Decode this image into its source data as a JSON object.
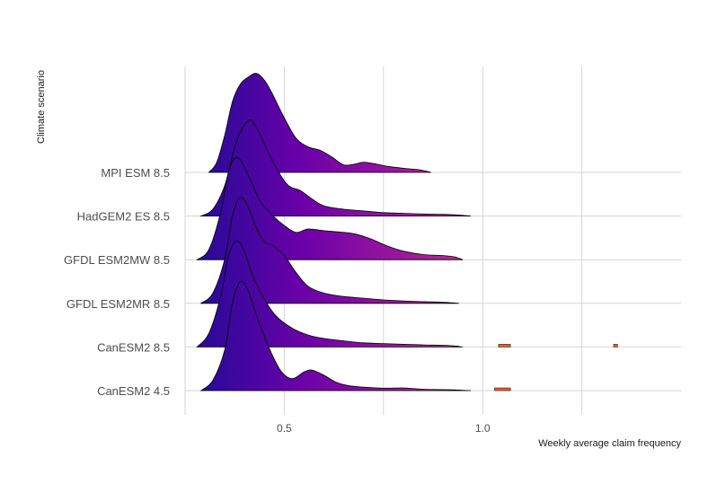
{
  "chart_data": {
    "type": "ridgeline",
    "xlabel": "Weekly average claim frequency",
    "ylabel": "Climate scenario",
    "xlim": [
      0.25,
      1.5
    ],
    "xticks": [
      0.5,
      1.0
    ],
    "xtick_labels": [
      "0.5",
      "1.0"
    ],
    "fill_gradient": [
      "#2b0a9a",
      "#6a00a8",
      "#b12a90",
      "#e16462",
      "#fca636"
    ],
    "series": [
      {
        "name": "CanESM2 4.5",
        "peak": 0.39,
        "x": [
          0.29,
          0.32,
          0.35,
          0.37,
          0.39,
          0.41,
          0.43,
          0.46,
          0.49,
          0.52,
          0.55,
          0.57,
          0.6,
          0.63,
          0.66,
          0.7,
          0.75,
          0.8,
          0.85,
          0.9,
          0.93,
          0.95,
          0.97
        ],
        "density": [
          0.0,
          0.3,
          1.2,
          2.6,
          3.2,
          2.9,
          2.2,
          1.3,
          0.6,
          0.35,
          0.55,
          0.6,
          0.45,
          0.25,
          0.15,
          0.1,
          0.07,
          0.08,
          0.04,
          0.03,
          0.02,
          0.01,
          0.0
        ]
      },
      {
        "name": "CanESM2 8.5",
        "peak": 0.38,
        "x": [
          0.28,
          0.31,
          0.34,
          0.36,
          0.38,
          0.4,
          0.42,
          0.45,
          0.48,
          0.52,
          0.56,
          0.6,
          0.65,
          0.7,
          0.75,
          0.8,
          0.85,
          0.9,
          0.93,
          0.95
        ],
        "density": [
          0.0,
          0.4,
          1.5,
          2.7,
          3.1,
          2.8,
          2.1,
          1.4,
          0.9,
          0.55,
          0.35,
          0.25,
          0.18,
          0.12,
          0.1,
          0.08,
          0.06,
          0.05,
          0.03,
          0.0
        ]
      },
      {
        "name": "GFDL ESM2MR 8.5",
        "peak": 0.39,
        "x": [
          0.29,
          0.32,
          0.35,
          0.37,
          0.39,
          0.41,
          0.43,
          0.45,
          0.47,
          0.5,
          0.53,
          0.56,
          0.6,
          0.65,
          0.7,
          0.75,
          0.8,
          0.85,
          0.9,
          0.94
        ],
        "density": [
          0.0,
          0.3,
          1.3,
          2.6,
          3.1,
          2.8,
          2.2,
          1.8,
          1.7,
          1.4,
          0.9,
          0.5,
          0.3,
          0.2,
          0.15,
          0.1,
          0.07,
          0.05,
          0.03,
          0.0
        ]
      },
      {
        "name": "GFDL ESM2MW 8.5",
        "peak": 0.38,
        "x": [
          0.28,
          0.31,
          0.34,
          0.36,
          0.38,
          0.4,
          0.42,
          0.44,
          0.47,
          0.5,
          0.53,
          0.56,
          0.6,
          0.65,
          0.68,
          0.72,
          0.76,
          0.8,
          0.85,
          0.9,
          0.93,
          0.95
        ],
        "density": [
          0.0,
          0.3,
          1.4,
          2.6,
          3.0,
          2.7,
          2.2,
          1.7,
          1.3,
          1.0,
          0.8,
          0.9,
          0.85,
          0.8,
          0.75,
          0.6,
          0.4,
          0.25,
          0.15,
          0.12,
          0.08,
          0.0
        ]
      },
      {
        "name": "HadGEM2 ES 8.5",
        "peak": 0.41,
        "x": [
          0.29,
          0.32,
          0.35,
          0.38,
          0.41,
          0.43,
          0.45,
          0.48,
          0.51,
          0.54,
          0.57,
          0.6,
          0.65,
          0.7,
          0.75,
          0.8,
          0.85,
          0.9,
          0.94,
          0.97
        ],
        "density": [
          0.0,
          0.2,
          0.9,
          2.2,
          2.8,
          2.6,
          2.1,
          1.4,
          0.9,
          0.75,
          0.5,
          0.3,
          0.2,
          0.15,
          0.1,
          0.08,
          0.06,
          0.05,
          0.03,
          0.0
        ]
      },
      {
        "name": "MPI ESM 8.5",
        "peak": 0.43,
        "x": [
          0.31,
          0.33,
          0.35,
          0.37,
          0.39,
          0.41,
          0.43,
          0.45,
          0.47,
          0.5,
          0.53,
          0.56,
          0.59,
          0.62,
          0.65,
          0.68,
          0.7,
          0.73,
          0.76,
          0.8,
          0.84,
          0.87
        ],
        "density": [
          0.0,
          0.3,
          1.1,
          2.1,
          2.6,
          2.8,
          2.9,
          2.7,
          2.3,
          1.6,
          1.0,
          0.75,
          0.65,
          0.45,
          0.22,
          0.25,
          0.3,
          0.25,
          0.18,
          0.12,
          0.08,
          0.0
        ]
      }
    ],
    "outliers": [
      {
        "series": "CanESM2 4.5",
        "x": [
          1.03,
          1.07
        ]
      },
      {
        "series": "CanESM2 8.5",
        "x": [
          1.04,
          1.07
        ]
      },
      {
        "series": "CanESM2 8.5",
        "x": [
          1.33,
          1.34
        ]
      }
    ]
  }
}
